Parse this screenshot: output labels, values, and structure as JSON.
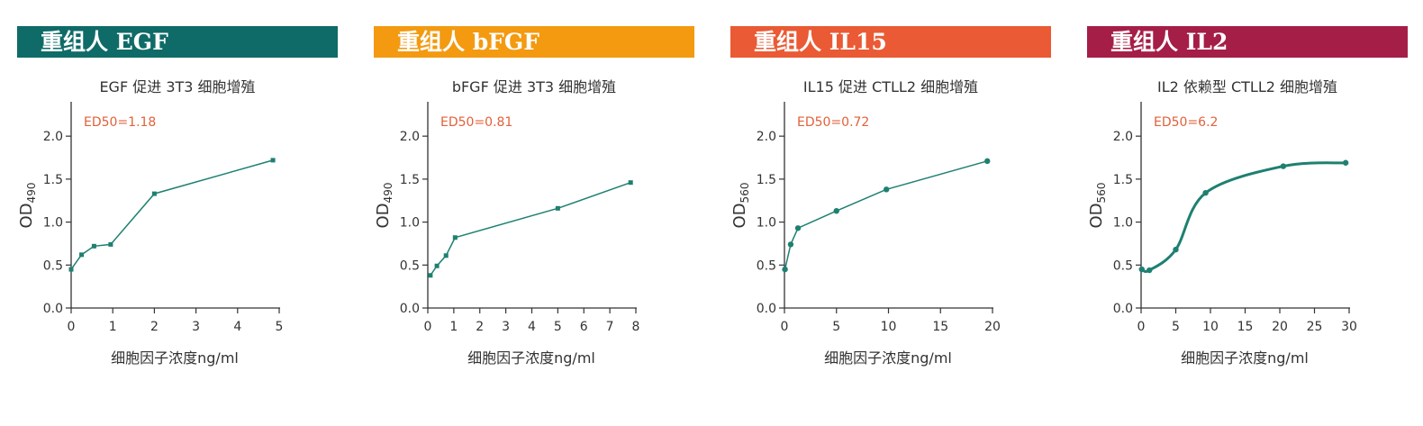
{
  "colors": {
    "line": "#1e8071",
    "ed50": "#e2613a",
    "axis": "#333333"
  },
  "chart_data": [
    {
      "type": "line",
      "banner": "重组人 EGF",
      "banner_color": "#0f6b67",
      "title": "EGF 促进 3T3 细胞增殖",
      "xlabel": "细胞因子浓度ng/ml",
      "ylabel_main": "OD",
      "ylabel_sub": "490",
      "annotation": "ED50=1.18",
      "xlim": [
        0,
        5
      ],
      "ylim": [
        0,
        2.4
      ],
      "xticks": [
        "0",
        "1",
        "2",
        "3",
        "4",
        "5"
      ],
      "xtick_values": [
        0,
        1,
        2,
        3,
        4,
        5
      ],
      "yticks": [
        "0.0",
        "0.5",
        "1.0",
        "1.5",
        "2.0"
      ],
      "ytick_values": [
        0,
        0.5,
        1.0,
        1.5,
        2.0
      ],
      "series": [
        {
          "x": [
            0,
            0.25,
            0.55,
            0.95,
            2.0,
            4.85
          ],
          "y": [
            0.45,
            0.62,
            0.72,
            0.74,
            1.33,
            1.72
          ]
        }
      ],
      "smooth": false,
      "marker": "square"
    },
    {
      "type": "line",
      "banner": "重组人 bFGF",
      "banner_color": "#f39a11",
      "title": "bFGF 促进 3T3 细胞增殖",
      "xlabel": "细胞因子浓度ng/ml",
      "ylabel_main": "OD",
      "ylabel_sub": "490",
      "annotation": "ED50=0.81",
      "xlim": [
        0,
        8
      ],
      "ylim": [
        0,
        2.4
      ],
      "xticks": [
        "0",
        "1",
        "2",
        "3",
        "4",
        "5",
        "6",
        "7",
        "8"
      ],
      "xtick_values": [
        0,
        1,
        2,
        3,
        4,
        5,
        6,
        7,
        8
      ],
      "yticks": [
        "0.0",
        "0.5",
        "1.0",
        "1.5",
        "2.0"
      ],
      "ytick_values": [
        0,
        0.5,
        1.0,
        1.5,
        2.0
      ],
      "series": [
        {
          "x": [
            0.1,
            0.35,
            0.7,
            1.05,
            5.0,
            7.8
          ],
          "y": [
            0.38,
            0.49,
            0.61,
            0.82,
            1.16,
            1.46
          ]
        }
      ],
      "smooth": false,
      "marker": "square"
    },
    {
      "type": "line",
      "banner": "重组人 IL15",
      "banner_color": "#ea5a34",
      "title": "IL15 促进 CTLL2 细胞增殖",
      "xlabel": "细胞因子浓度ng/ml",
      "ylabel_main": "OD",
      "ylabel_sub": "560",
      "annotation": "ED50=0.72",
      "xlim": [
        0,
        20
      ],
      "ylim": [
        0,
        2.4
      ],
      "xticks": [
        "0",
        "5",
        "10",
        "15",
        "20"
      ],
      "xtick_values": [
        0,
        5,
        10,
        15,
        20
      ],
      "yticks": [
        "0.0",
        "0.5",
        "1.0",
        "1.5",
        "2.0"
      ],
      "ytick_values": [
        0,
        0.5,
        1.0,
        1.5,
        2.0
      ],
      "series": [
        {
          "x": [
            0.05,
            0.6,
            1.3,
            5.0,
            9.8,
            19.5
          ],
          "y": [
            0.45,
            0.74,
            0.93,
            1.13,
            1.38,
            1.71
          ]
        }
      ],
      "smooth": false,
      "marker": "circle"
    },
    {
      "type": "line",
      "banner": "重组人 IL2",
      "banner_color": "#a51e47",
      "title": "IL2 依赖型 CTLL2 细胞增殖",
      "xlabel": "细胞因子浓度ng/ml",
      "ylabel_main": "OD",
      "ylabel_sub": "560",
      "annotation": "ED50=6.2",
      "xlim": [
        0,
        30
      ],
      "ylim": [
        0,
        2.4
      ],
      "xticks": [
        "0",
        "5",
        "10",
        "15",
        "20",
        "25",
        "30"
      ],
      "xtick_values": [
        0,
        5,
        10,
        15,
        20,
        25,
        30
      ],
      "yticks": [
        "0.0",
        "0.5",
        "1.0",
        "1.5",
        "2.0"
      ],
      "ytick_values": [
        0,
        0.5,
        1.0,
        1.5,
        2.0
      ],
      "series": [
        {
          "x": [
            0.1,
            1.2,
            5.0,
            9.3,
            20.5,
            29.5
          ],
          "y": [
            0.45,
            0.44,
            0.68,
            1.34,
            1.65,
            1.69
          ]
        }
      ],
      "smooth": true,
      "marker": "circle"
    }
  ]
}
